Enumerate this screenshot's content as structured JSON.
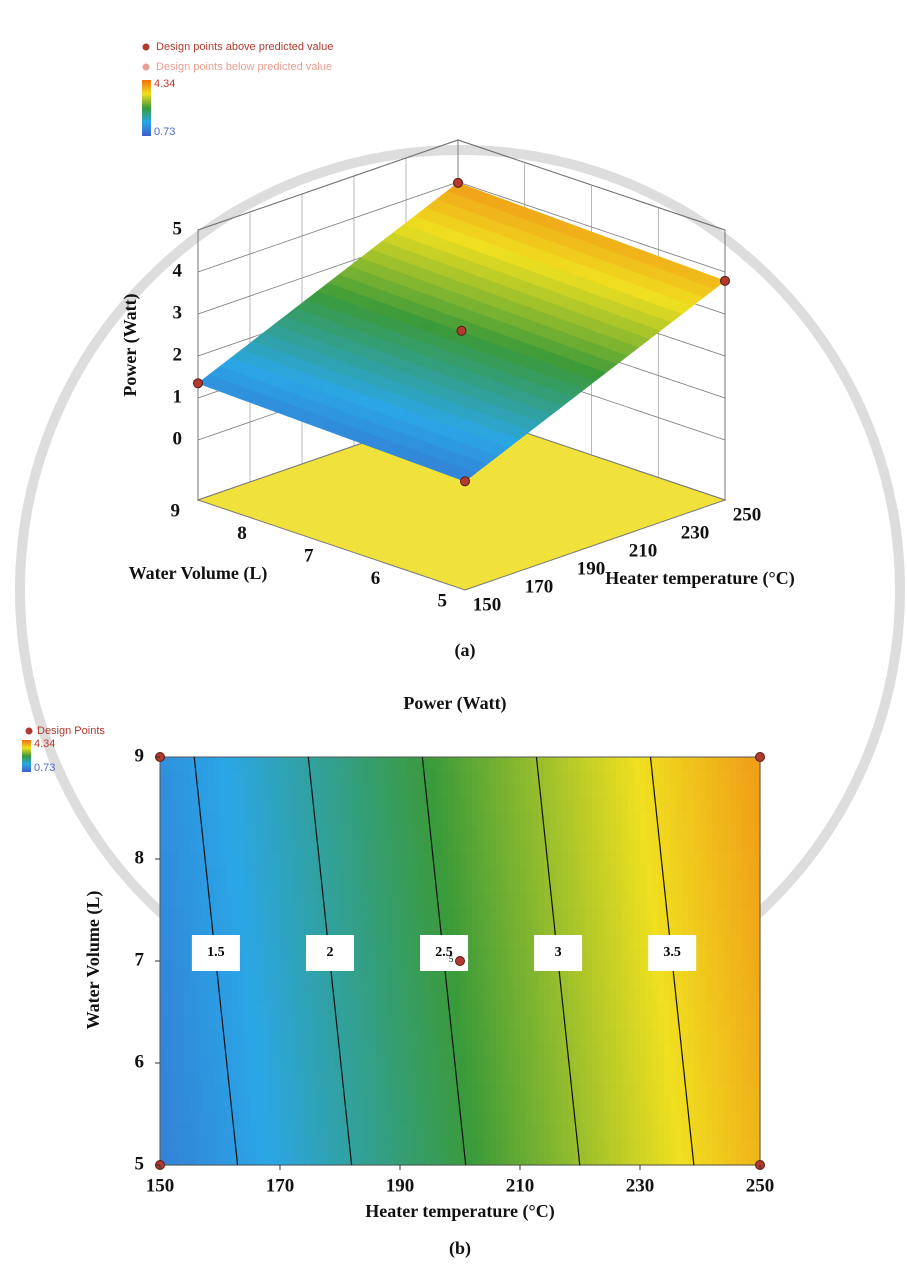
{
  "chart_data": [
    {
      "type": "surface3d",
      "legend": [
        {
          "name": "Design points above predicted value",
          "color": "#b03a2e"
        },
        {
          "name": "Design points below predicted value",
          "color": "#e8a090"
        }
      ],
      "colorbar": {
        "max": 4.34,
        "min": 0.73
      },
      "zlabel": "Power (Watt)",
      "xlabel": "Heater temperature (°C)",
      "ylabel": "Water Volume (L)",
      "xlim": [
        150,
        250
      ],
      "ylim": [
        5,
        9
      ],
      "zlim": [
        0,
        5
      ],
      "xticks": [
        150,
        170,
        190,
        210,
        230,
        250
      ],
      "yticks": [
        5,
        6,
        7,
        8,
        9
      ],
      "zticks": [
        0,
        1,
        2,
        3,
        4,
        5
      ],
      "points": {
        "x": [
          150,
          250,
          150,
          250,
          200
        ],
        "y": [
          5,
          5,
          9,
          9,
          7
        ],
        "values": [
          1.16,
          3.79,
          1.35,
          3.98,
          2.6
        ]
      },
      "caption": "(a)"
    },
    {
      "type": "contour",
      "title": "Power (Watt)",
      "legend": [
        {
          "name": "Design Points",
          "color": "#b03a2e"
        }
      ],
      "colorbar": {
        "max": 4.34,
        "min": 0.73
      },
      "xlabel": "Heater temperature (°C)",
      "ylabel": "Water Volume (L)",
      "xlim": [
        150,
        250
      ],
      "ylim": [
        5,
        9
      ],
      "xticks": [
        150,
        170,
        190,
        210,
        230,
        250
      ],
      "yticks": [
        5,
        6,
        7,
        8,
        9
      ],
      "contour_levels": [
        1.5,
        2,
        2.5,
        3,
        3.5
      ],
      "points": {
        "x": [
          150,
          250,
          150,
          250,
          200
        ],
        "y": [
          5,
          5,
          9,
          9,
          7
        ],
        "values": [
          1.16,
          3.79,
          1.35,
          3.98,
          2.6
        ]
      },
      "point_label": "5",
      "caption": "(b)"
    }
  ]
}
